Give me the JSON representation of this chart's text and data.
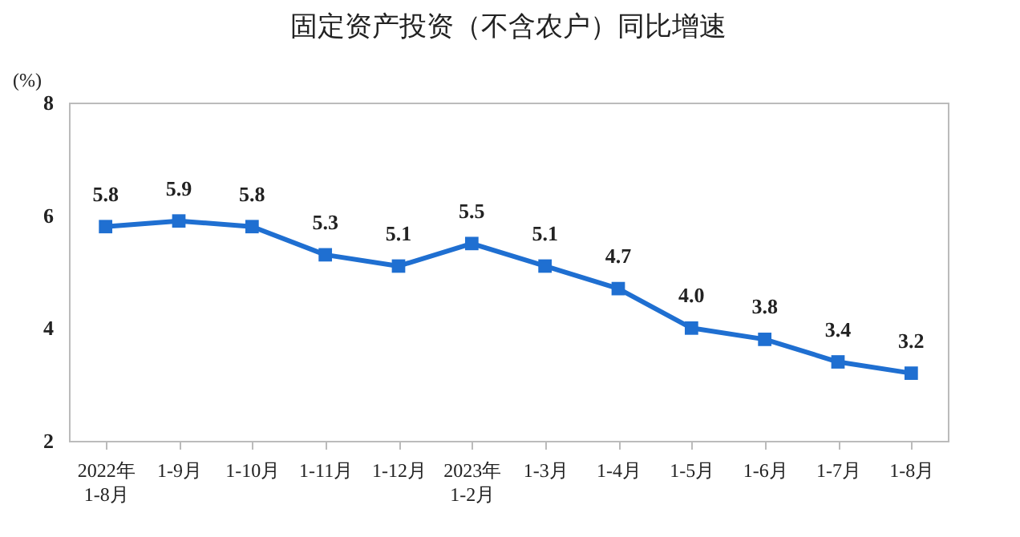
{
  "chart_data": {
    "type": "line",
    "title": "固定资产投资（不含农户）同比增速",
    "ylabel": "(%)",
    "categories": [
      "2022年\n1-8月",
      "1-9月",
      "1-10月",
      "1-11月",
      "1-12月",
      "2023年\n1-2月",
      "1-3月",
      "1-4月",
      "1-5月",
      "1-6月",
      "1-7月",
      "1-8月"
    ],
    "series": [
      {
        "color": "#1f6fd1",
        "values": [
          5.8,
          5.9,
          5.8,
          5.3,
          5.1,
          5.5,
          5.1,
          4.7,
          4.0,
          3.8,
          3.4,
          3.2
        ]
      }
    ],
    "ylim": [
      2,
      8
    ],
    "yticks": [
      2,
      4,
      6,
      8
    ],
    "value_labels": [
      "5.8",
      "5.9",
      "5.8",
      "5.3",
      "5.1",
      "5.5",
      "5.1",
      "4.7",
      "4.0",
      "3.8",
      "3.4",
      "3.2"
    ],
    "marker": "square",
    "grid": false
  }
}
